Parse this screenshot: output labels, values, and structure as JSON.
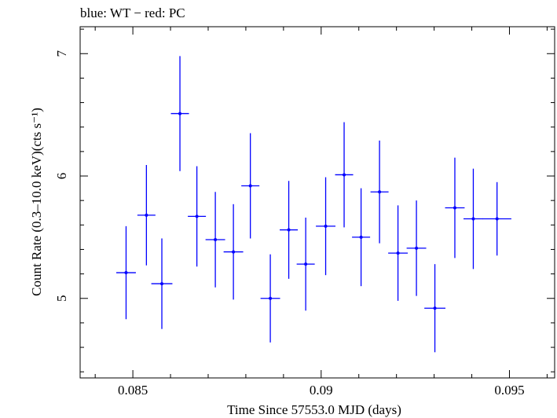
{
  "chart_data": {
    "type": "scatter",
    "title": "blue: WT − red: PC",
    "xlabel": "Time Since 57553.0 MJD (days)",
    "ylabel": "Count Rate (0.3–10.0 keV)(cts s⁻¹)",
    "xlim": [
      0.0836,
      0.0962
    ],
    "ylim": [
      4.35,
      7.22
    ],
    "xticks": [
      {
        "value": 0.085,
        "label": "0.085"
      },
      {
        "value": 0.09,
        "label": "0.09"
      },
      {
        "value": 0.095,
        "label": "0.095"
      }
    ],
    "yticks": [
      {
        "value": 5,
        "label": "5"
      },
      {
        "value": 6,
        "label": "6"
      },
      {
        "value": 7,
        "label": "7"
      }
    ],
    "grid": false,
    "series": [
      {
        "name": "WT",
        "color": "#0000ff",
        "points": [
          {
            "x": 0.08482,
            "xerr": 0.00026,
            "y": 5.21,
            "yerr_lo": 0.38,
            "yerr_hi": 0.38
          },
          {
            "x": 0.08536,
            "xerr": 0.00024,
            "y": 5.68,
            "yerr_lo": 0.41,
            "yerr_hi": 0.41
          },
          {
            "x": 0.08577,
            "xerr": 0.00028,
            "y": 5.12,
            "yerr_lo": 0.37,
            "yerr_hi": 0.37
          },
          {
            "x": 0.08625,
            "xerr": 0.00024,
            "y": 6.51,
            "yerr_lo": 0.47,
            "yerr_hi": 0.47
          },
          {
            "x": 0.0867,
            "xerr": 0.00024,
            "y": 5.67,
            "yerr_lo": 0.41,
            "yerr_hi": 0.41
          },
          {
            "x": 0.08719,
            "xerr": 0.00026,
            "y": 5.48,
            "yerr_lo": 0.39,
            "yerr_hi": 0.39
          },
          {
            "x": 0.08767,
            "xerr": 0.00026,
            "y": 5.38,
            "yerr_lo": 0.39,
            "yerr_hi": 0.39
          },
          {
            "x": 0.08812,
            "xerr": 0.00024,
            "y": 5.92,
            "yerr_lo": 0.43,
            "yerr_hi": 0.43
          },
          {
            "x": 0.08865,
            "xerr": 0.00026,
            "y": 5.0,
            "yerr_lo": 0.36,
            "yerr_hi": 0.36
          },
          {
            "x": 0.08914,
            "xerr": 0.00024,
            "y": 5.56,
            "yerr_lo": 0.4,
            "yerr_hi": 0.4
          },
          {
            "x": 0.08959,
            "xerr": 0.00024,
            "y": 5.28,
            "yerr_lo": 0.38,
            "yerr_hi": 0.38
          },
          {
            "x": 0.09012,
            "xerr": 0.00026,
            "y": 5.59,
            "yerr_lo": 0.4,
            "yerr_hi": 0.4
          },
          {
            "x": 0.09061,
            "xerr": 0.00024,
            "y": 6.01,
            "yerr_lo": 0.43,
            "yerr_hi": 0.43
          },
          {
            "x": 0.09106,
            "xerr": 0.00024,
            "y": 5.5,
            "yerr_lo": 0.4,
            "yerr_hi": 0.4
          },
          {
            "x": 0.09155,
            "xerr": 0.00024,
            "y": 5.87,
            "yerr_lo": 0.42,
            "yerr_hi": 0.42
          },
          {
            "x": 0.09204,
            "xerr": 0.00026,
            "y": 5.37,
            "yerr_lo": 0.39,
            "yerr_hi": 0.39
          },
          {
            "x": 0.09253,
            "xerr": 0.00026,
            "y": 5.41,
            "yerr_lo": 0.39,
            "yerr_hi": 0.39
          },
          {
            "x": 0.09302,
            "xerr": 0.00028,
            "y": 4.92,
            "yerr_lo": 0.36,
            "yerr_hi": 0.36
          },
          {
            "x": 0.09355,
            "xerr": 0.00026,
            "y": 5.74,
            "yerr_lo": 0.41,
            "yerr_hi": 0.41
          },
          {
            "x": 0.09404,
            "xerr": 0.00026,
            "y": 5.65,
            "yerr_lo": 0.41,
            "yerr_hi": 0.41
          },
          {
            "x": 0.09467,
            "xerr": 0.00038,
            "y": 5.65,
            "yerr_lo": 0.3,
            "yerr_hi": 0.3
          }
        ]
      }
    ]
  }
}
